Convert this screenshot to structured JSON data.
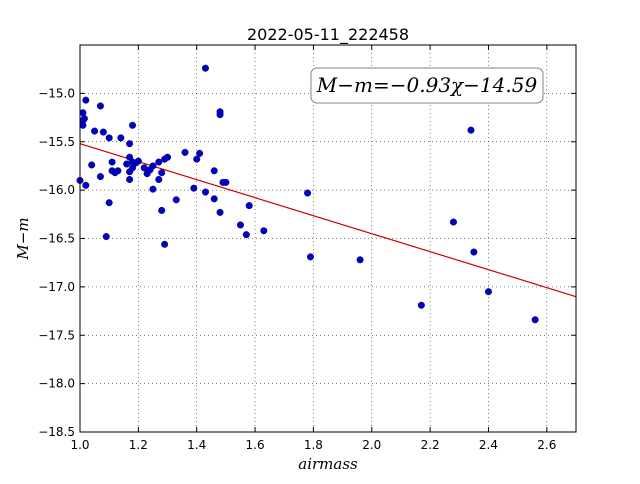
{
  "chart_data": {
    "type": "scatter",
    "title": "2022-05-11_222458",
    "xlabel": "airmass",
    "ylabel": "M−m",
    "xlim": [
      1.0,
      2.7
    ],
    "ylim": [
      -18.5,
      -14.5
    ],
    "x_ticks": [
      1.0,
      1.2,
      1.4,
      1.6,
      1.8,
      2.0,
      2.2,
      2.4,
      2.6
    ],
    "y_ticks": [
      -15.0,
      -15.5,
      -16.0,
      -16.5,
      -17.0,
      -17.5,
      -18.0,
      -18.5
    ],
    "x_tick_labels": [
      "1.0",
      "1.2",
      "1.4",
      "1.6",
      "1.8",
      "2.0",
      "2.2",
      "2.4",
      "2.6"
    ],
    "y_tick_labels": [
      "−15.0",
      "−15.5",
      "−16.0",
      "−16.5",
      "−17.0",
      "−17.5",
      "−18.0",
      "−18.5"
    ],
    "grid": true,
    "annotation": "M−m=−0.93χ−14.59",
    "fit": {
      "slope": -0.93,
      "intercept": -14.59,
      "color": "#cc0000"
    },
    "point_color": "#0000cc",
    "points": [
      [
        1.0,
        -15.9
      ],
      [
        1.01,
        -15.33
      ],
      [
        1.01,
        -15.28
      ],
      [
        1.01,
        -15.2
      ],
      [
        1.015,
        -15.26
      ],
      [
        1.02,
        -15.07
      ],
      [
        1.02,
        -15.95
      ],
      [
        1.04,
        -15.74
      ],
      [
        1.05,
        -15.39
      ],
      [
        1.07,
        -15.86
      ],
      [
        1.07,
        -15.13
      ],
      [
        1.08,
        -15.4
      ],
      [
        1.09,
        -16.48
      ],
      [
        1.1,
        -16.13
      ],
      [
        1.1,
        -15.46
      ],
      [
        1.11,
        -15.8
      ],
      [
        1.11,
        -15.71
      ],
      [
        1.12,
        -15.82
      ],
      [
        1.13,
        -15.8
      ],
      [
        1.14,
        -15.46
      ],
      [
        1.16,
        -15.73
      ],
      [
        1.17,
        -15.89
      ],
      [
        1.17,
        -15.81
      ],
      [
        1.17,
        -15.52
      ],
      [
        1.17,
        -15.66
      ],
      [
        1.18,
        -15.33
      ],
      [
        1.18,
        -15.77
      ],
      [
        1.18,
        -15.71
      ],
      [
        1.19,
        -15.72
      ],
      [
        1.2,
        -15.7
      ],
      [
        1.22,
        -15.77
      ],
      [
        1.23,
        -15.83
      ],
      [
        1.24,
        -15.79
      ],
      [
        1.25,
        -15.75
      ],
      [
        1.25,
        -15.99
      ],
      [
        1.27,
        -15.89
      ],
      [
        1.27,
        -15.71
      ],
      [
        1.28,
        -16.21
      ],
      [
        1.28,
        -15.82
      ],
      [
        1.29,
        -16.56
      ],
      [
        1.29,
        -15.68
      ],
      [
        1.3,
        -15.66
      ],
      [
        1.33,
        -16.1
      ],
      [
        1.36,
        -15.61
      ],
      [
        1.39,
        -15.98
      ],
      [
        1.4,
        -15.68
      ],
      [
        1.41,
        -15.62
      ],
      [
        1.43,
        -14.74
      ],
      [
        1.43,
        -16.02
      ],
      [
        1.46,
        -15.8
      ],
      [
        1.46,
        -16.09
      ],
      [
        1.48,
        -15.22
      ],
      [
        1.48,
        -15.19
      ],
      [
        1.48,
        -16.23
      ],
      [
        1.49,
        -15.92
      ],
      [
        1.5,
        -15.92
      ],
      [
        1.55,
        -16.36
      ],
      [
        1.57,
        -16.46
      ],
      [
        1.58,
        -16.16
      ],
      [
        1.63,
        -16.42
      ],
      [
        1.78,
        -16.03
      ],
      [
        1.79,
        -16.69
      ],
      [
        1.96,
        -16.72
      ],
      [
        2.17,
        -17.19
      ],
      [
        2.28,
        -16.33
      ],
      [
        2.34,
        -15.38
      ],
      [
        2.35,
        -16.64
      ],
      [
        2.4,
        -17.05
      ],
      [
        2.56,
        -17.34
      ]
    ]
  }
}
